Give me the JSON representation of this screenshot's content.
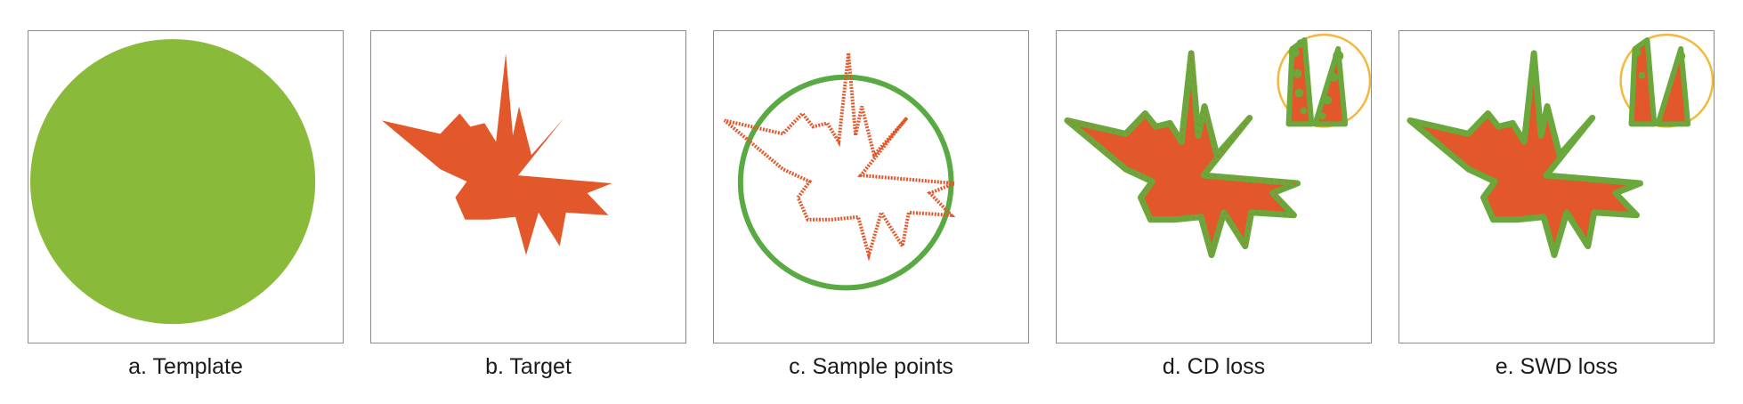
{
  "colors": {
    "template_green": "#8aba3a",
    "ring_green": "#5aaa44",
    "target_orange": "#e2582a",
    "point_green": "#6aa83c",
    "zoom_circle": "#f2b93a",
    "panel_border": "#8c8c8c"
  },
  "panels": [
    {
      "caption": "a. Template"
    },
    {
      "caption": "b. Target"
    },
    {
      "caption": "c. Sample points"
    },
    {
      "caption": "d. CD loss"
    },
    {
      "caption": "e. SWD loss"
    }
  ]
}
